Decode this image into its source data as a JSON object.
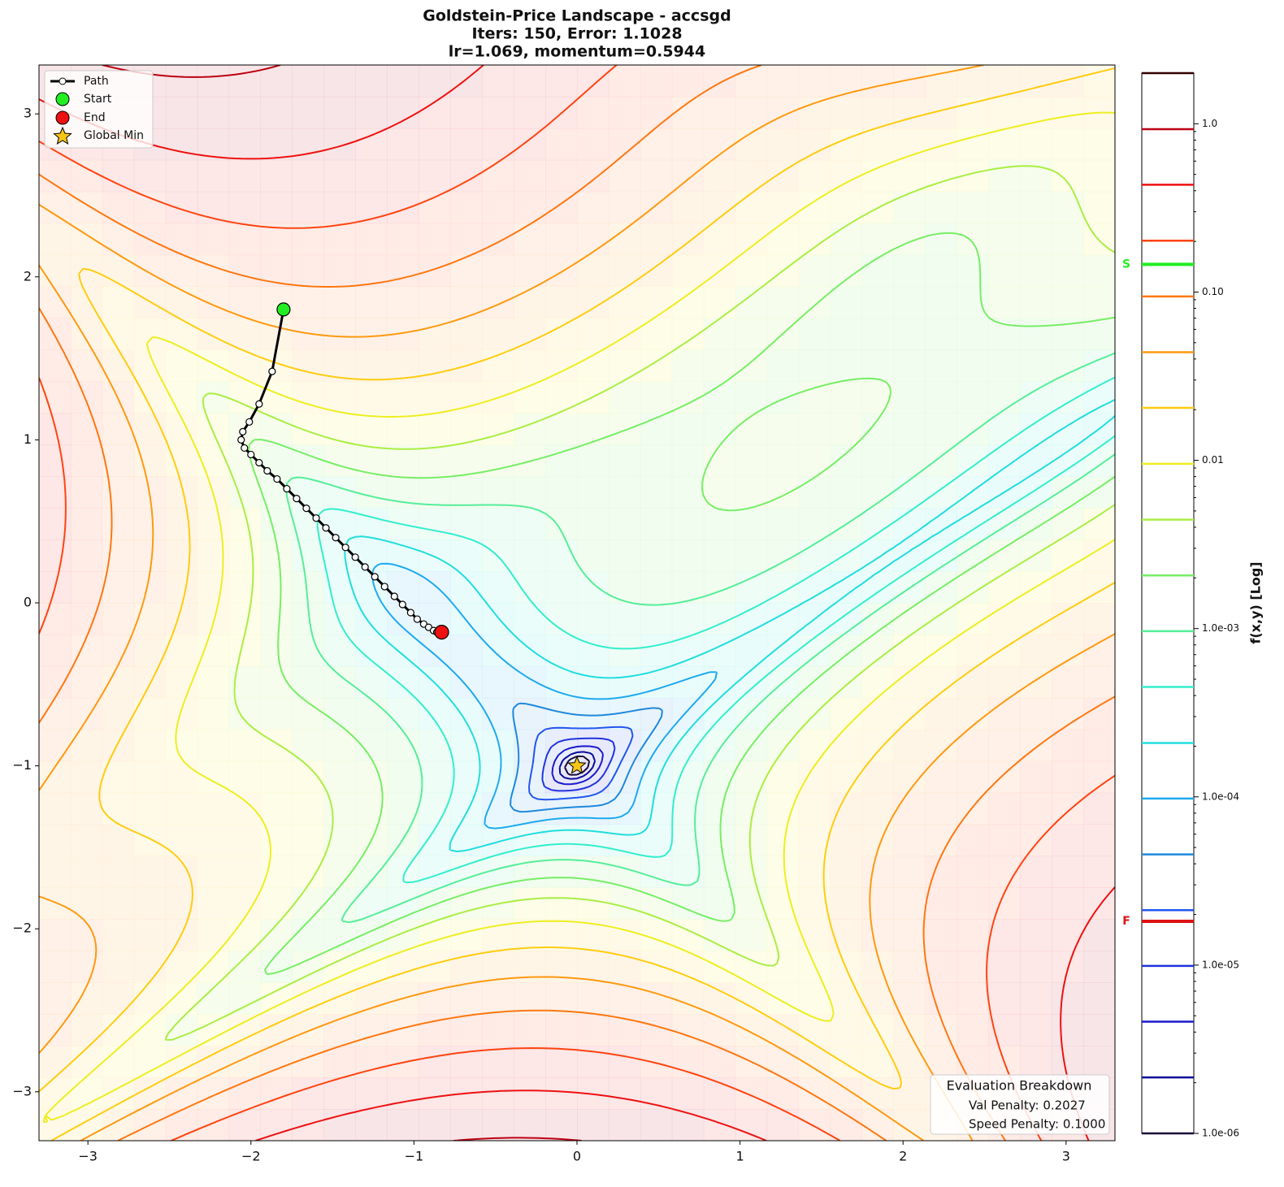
{
  "chart_data": {
    "type": "contour",
    "title": [
      "Goldstein-Price Landscape - accsgd",
      "Iters: 150, Error: 1.1028",
      "lr=1.069, momentum=0.5944"
    ],
    "xlim": [
      -3.3,
      3.3
    ],
    "ylim": [
      -3.3,
      3.3
    ],
    "xticks": [
      {
        "value": -3,
        "label": "−3"
      },
      {
        "value": -2,
        "label": "−2"
      },
      {
        "value": -1,
        "label": "−1"
      },
      0,
      1,
      2,
      3
    ],
    "yticks": [
      {
        "value": -3,
        "label": "−3"
      },
      {
        "value": -2,
        "label": "−2"
      },
      {
        "value": -1,
        "label": "−1"
      },
      0,
      1,
      2,
      3
    ],
    "levels": [
      1e-06,
      2.15e-06,
      4.61e-06,
      9.89e-06,
      2.12e-05,
      4.55e-05,
      9.77e-05,
      0.000209,
      0.00045,
      0.000965,
      0.00207,
      0.00444,
      0.00953,
      0.0205,
      0.0439,
      0.0942,
      0.202,
      0.434,
      0.929,
      2.0
    ],
    "level_colors": [
      "#1a0a3a",
      "#0a0a9a",
      "#1a1acc",
      "#2233dd",
      "#2255ee",
      "#1e88dd",
      "#1eaaee",
      "#22dddd",
      "#33eecc",
      "#55ee99",
      "#77ee66",
      "#aaee44",
      "#eeee22",
      "#ffcc11",
      "#ff9911",
      "#ff7711",
      "#ff4411",
      "#ee1111",
      "#bb0011",
      "#330000"
    ],
    "path": {
      "name": "Path",
      "x": [
        -1.8,
        -1.87,
        -1.95,
        -2.01,
        -2.05,
        -2.06,
        -2.04,
        -2.0,
        -1.95,
        -1.9,
        -1.84,
        -1.78,
        -1.72,
        -1.66,
        -1.6,
        -1.54,
        -1.48,
        -1.42,
        -1.36,
        -1.3,
        -1.24,
        -1.18,
        -1.12,
        -1.07,
        -1.02,
        -0.98,
        -0.94,
        -0.91,
        -0.88,
        -0.86,
        -0.84
      ],
      "y": [
        1.8,
        1.42,
        1.22,
        1.11,
        1.05,
        1.0,
        0.95,
        0.91,
        0.86,
        0.81,
        0.76,
        0.7,
        0.64,
        0.58,
        0.52,
        0.46,
        0.4,
        0.34,
        0.28,
        0.22,
        0.16,
        0.1,
        0.04,
        -0.01,
        -0.06,
        -0.1,
        -0.13,
        -0.15,
        -0.17,
        -0.18,
        -0.18
      ]
    },
    "start": {
      "name": "Start",
      "x": -1.8,
      "y": 1.8,
      "color": "#22ee22"
    },
    "end": {
      "name": "End",
      "x": -0.83,
      "y": -0.18,
      "color": "#ee1111"
    },
    "global_min": {
      "name": "Global Min",
      "x": 0,
      "y": -1,
      "color": "#f5c518"
    },
    "colorbar": {
      "label": "f(x,y) [Log]",
      "lim": [
        1e-06,
        2.0
      ],
      "log": true,
      "ticks": [
        {
          "value": 1e-06,
          "label": "1.0e-06"
        },
        {
          "value": 1e-05,
          "label": "1.0e-05"
        },
        {
          "value": 0.0001,
          "label": "1.0e-04"
        },
        {
          "value": 0.001,
          "label": "1.0e-03"
        },
        0.01,
        {
          "value": 0.1,
          "label": "0.10"
        },
        {
          "value": 1,
          "label": "1.0"
        }
      ],
      "markers": [
        {
          "label": "S",
          "value": 0.146,
          "color": "#22ee22"
        },
        {
          "label": "F",
          "value": 1.82e-05,
          "color": "#dd1111"
        }
      ]
    },
    "breakdown": {
      "title": "Evaluation Breakdown",
      "lines": [
        "Val Penalty: 0.2027",
        "Speed Penalty: 0.1000"
      ]
    }
  }
}
